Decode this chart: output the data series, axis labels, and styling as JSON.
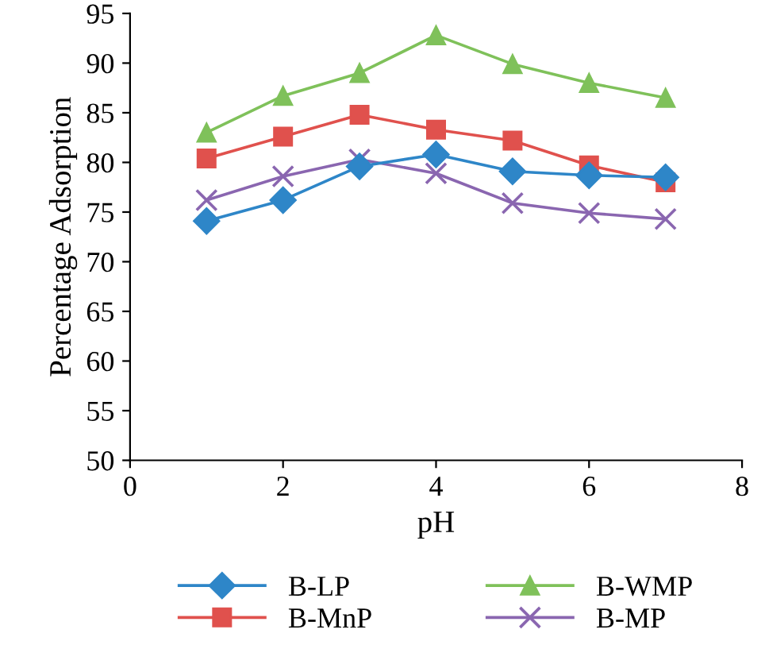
{
  "chart_data": {
    "type": "line",
    "xlabel": "pH",
    "ylabel": "Percentage Adsorption",
    "x": [
      1,
      2,
      3,
      4,
      5,
      6,
      7
    ],
    "xlim": [
      0,
      8
    ],
    "xticks": [
      0,
      2,
      4,
      6,
      8
    ],
    "ylim": [
      50,
      95
    ],
    "yticks": [
      50,
      55,
      60,
      65,
      70,
      75,
      80,
      85,
      90,
      95
    ],
    "grid": false,
    "legend": "bottom",
    "series": [
      {
        "name": "B-LP",
        "color": "#2e86c8",
        "marker": "diamond",
        "values": [
          74.1,
          76.2,
          79.6,
          80.8,
          79.1,
          78.7,
          78.5
        ]
      },
      {
        "name": "B-MnP",
        "color": "#e0514d",
        "marker": "square",
        "values": [
          80.4,
          82.6,
          84.8,
          83.3,
          82.2,
          79.7,
          78.0
        ]
      },
      {
        "name": "B-WMP",
        "color": "#7fc15a",
        "marker": "triangle",
        "values": [
          83.0,
          86.7,
          89.0,
          92.8,
          89.9,
          88.0,
          86.5
        ]
      },
      {
        "name": "B-MP",
        "color": "#8a66b0",
        "marker": "cross",
        "values": [
          76.2,
          78.6,
          80.3,
          78.9,
          75.9,
          74.9,
          74.3
        ]
      }
    ]
  }
}
